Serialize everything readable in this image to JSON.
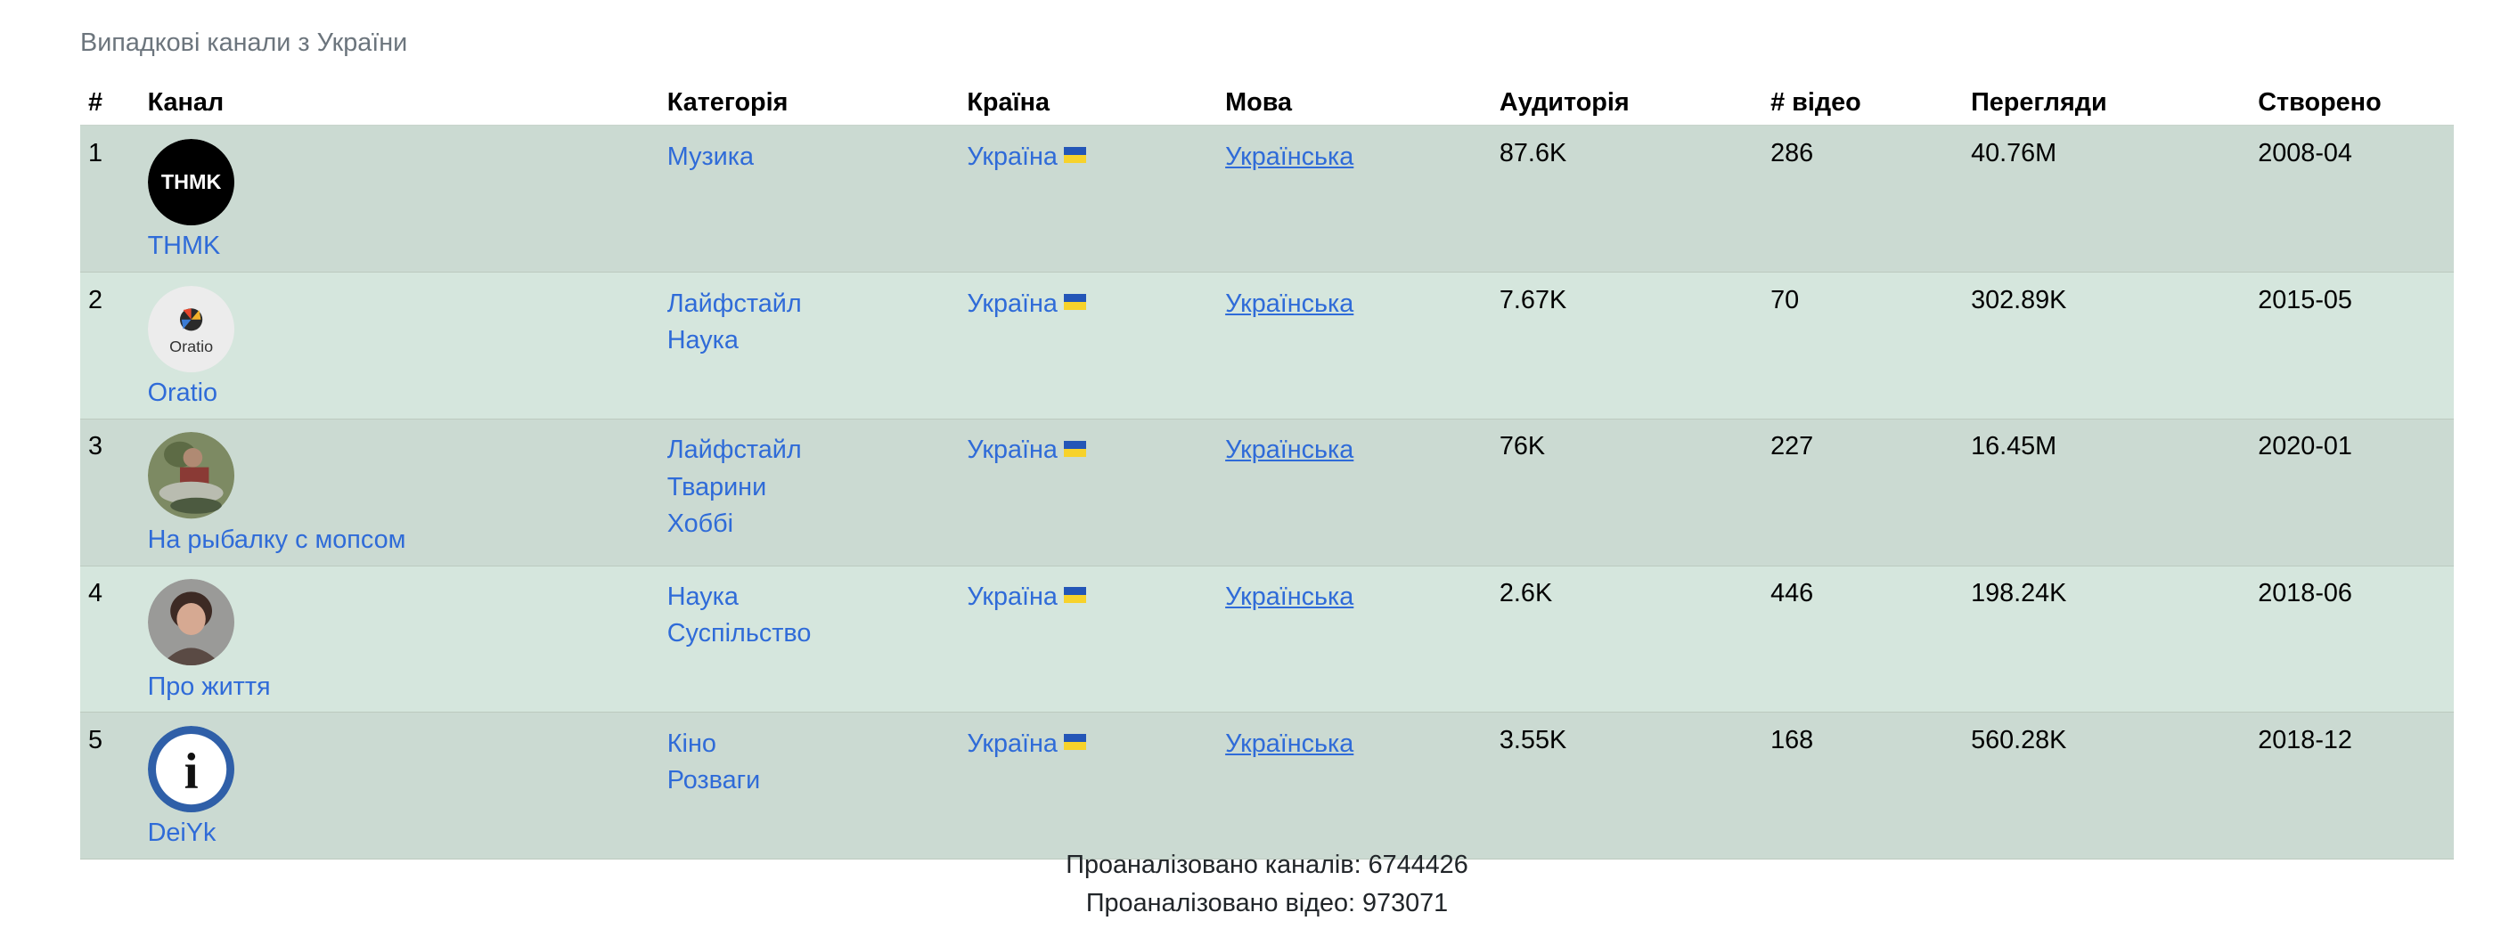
{
  "caption": "Випадкові канали з України",
  "headers": {
    "num": "#",
    "channel": "Канал",
    "category": "Категорія",
    "country": "Країна",
    "language": "Мова",
    "audience": "Аудиторія",
    "videos": "# відео",
    "views": "Перегляди",
    "created": "Створено"
  },
  "rows": [
    {
      "num": "1",
      "channel": "THMK",
      "avatar_text": "THMK",
      "categories": [
        "Музика"
      ],
      "country": "Україна",
      "language": "Українська",
      "audience": "87.6K",
      "videos": "286",
      "views": "40.76M",
      "created": "2008-04"
    },
    {
      "num": "2",
      "channel": "Oratio",
      "avatar_text": "Oratio",
      "categories": [
        "Лайфстайл",
        "Наука"
      ],
      "country": "Україна",
      "language": "Українська",
      "audience": "7.67K",
      "videos": "70",
      "views": "302.89K",
      "created": "2015-05"
    },
    {
      "num": "3",
      "channel": "На рыбалку с мопсом",
      "categories": [
        "Лайфстайл",
        "Тварини",
        "Хоббі"
      ],
      "country": "Україна",
      "language": "Українська",
      "audience": "76K",
      "videos": "227",
      "views": "16.45M",
      "created": "2020-01"
    },
    {
      "num": "4",
      "channel": "Про життя",
      "categories": [
        "Наука",
        "Суспільство"
      ],
      "country": "Україна",
      "language": "Українська",
      "audience": "2.6K",
      "videos": "446",
      "views": "198.24K",
      "created": "2018-06"
    },
    {
      "num": "5",
      "channel": "DeiYk",
      "avatar_text": "i",
      "categories": [
        "Кіно",
        "Розваги"
      ],
      "country": "Україна",
      "language": "Українська",
      "audience": "3.55K",
      "videos": "168",
      "views": "560.28K",
      "created": "2018-12"
    }
  ],
  "footer": {
    "channels_analyzed": "Проаналізовано каналів: 6744426",
    "videos_analyzed": "Проаналізовано відео: 973071"
  },
  "colors": {
    "link": "#2f6bd8",
    "row_dark": "#cbdad2",
    "row_light": "#d5e6dd",
    "flag_blue": "#2456b7",
    "flag_yellow": "#f7d22b"
  }
}
